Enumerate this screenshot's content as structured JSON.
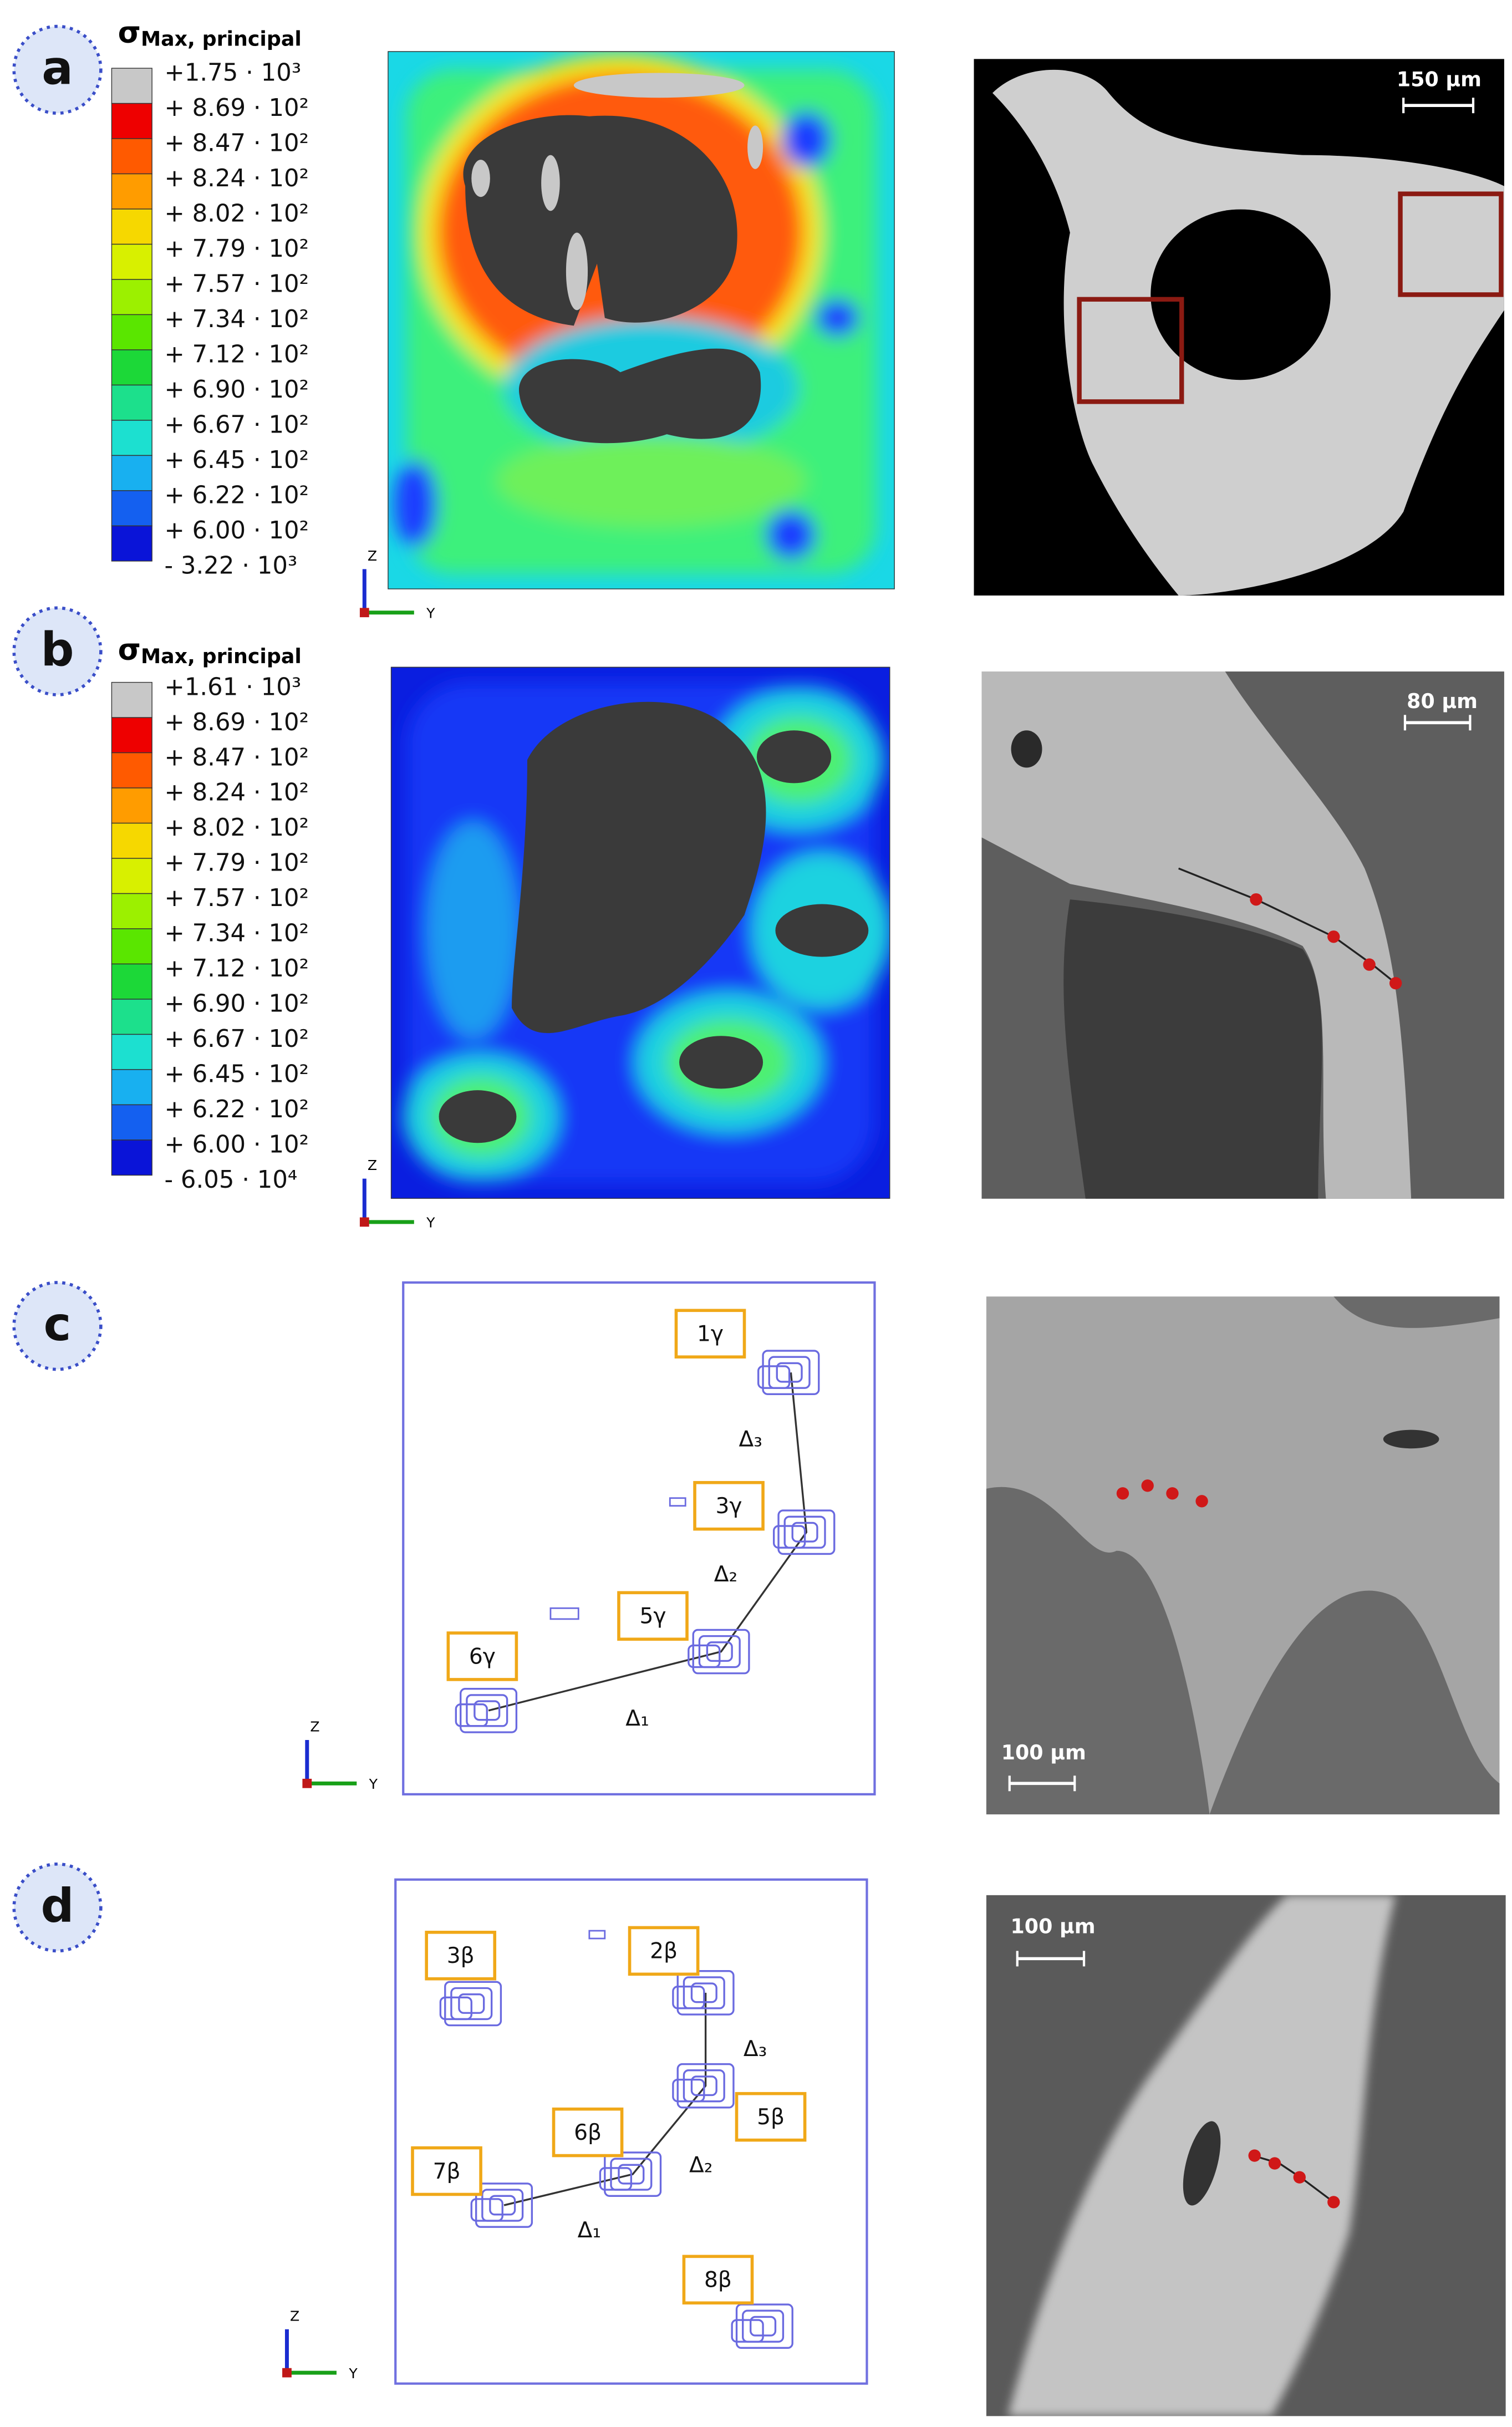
{
  "panels": [
    {
      "label": "a",
      "legend": {
        "symbol": "σ",
        "subscript": "Max, principal",
        "entries": [
          "+1.75 · 10³",
          "+ 8.69 · 10²",
          "+ 8.47 · 10²",
          "+ 8.24 · 10²",
          "+ 8.02 · 10²",
          "+ 7.79 · 10²",
          "+ 7.57 · 10²",
          "+ 7.34 · 10²",
          "+ 7.12 · 10²",
          "+ 6.90 · 10²",
          "+ 6.67 · 10²",
          "+ 6.45 · 10²",
          "+ 6.22 · 10²",
          "+ 6.00 · 10²",
          "-  3.22 · 10³"
        ]
      },
      "axes": {
        "z": "Z",
        "y": "Y"
      },
      "scale_bar": "150 μm"
    },
    {
      "label": "b",
      "legend": {
        "symbol": "σ",
        "subscript": "Max, principal",
        "entries": [
          "+1.61 · 10³",
          "+ 8.69 · 10²",
          "+ 8.47 · 10²",
          "+ 8.24 · 10²",
          "+ 8.02 · 10²",
          "+ 7.79 · 10²",
          "+ 7.57 · 10²",
          "+ 7.34 · 10²",
          "+ 7.12 · 10²",
          "+ 6.90 · 10²",
          "+ 6.67 · 10²",
          "+ 6.45 · 10²",
          "+ 6.22 · 10²",
          "+ 6.00 · 10²",
          "-  6.05 · 10⁴"
        ]
      },
      "axes": {
        "z": "Z",
        "y": "Y"
      },
      "scale_bar": "80 μm"
    },
    {
      "label": "c",
      "nodes": [
        "1γ",
        "3γ",
        "5γ",
        "6γ"
      ],
      "deltas": [
        "Δ₃",
        "Δ₂",
        "Δ₁"
      ],
      "axes": {
        "z": "Z",
        "y": "Y"
      },
      "scale_bar": "100 μm"
    },
    {
      "label": "d",
      "nodes": [
        "3β",
        "2β",
        "5β",
        "6β",
        "7β",
        "8β"
      ],
      "deltas": [
        "Δ₃",
        "Δ₂",
        "Δ₁"
      ],
      "axes": {
        "z": "Z",
        "y": "Y"
      },
      "scale_bar": "100 μm"
    }
  ]
}
